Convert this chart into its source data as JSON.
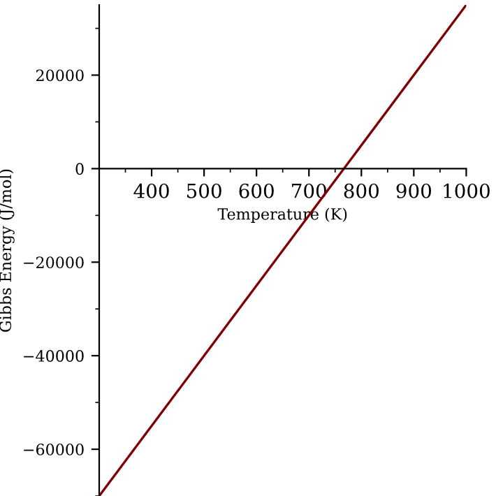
{
  "chart_data": {
    "type": "line",
    "xlabel": "Temperature (K)",
    "ylabel": "Gibbs Energy (J/mol)",
    "x": [
      300,
      1000
    ],
    "series": [
      {
        "color": "#7f0000",
        "values": [
          -70000,
          35000
        ]
      }
    ],
    "xlim": [
      300,
      1000
    ],
    "ylim": [
      -70000,
      35000
    ],
    "xticks": [
      400,
      500,
      600,
      700,
      800,
      900,
      1000
    ],
    "yticks": [
      -60000,
      -40000,
      -20000,
      0,
      20000
    ],
    "grid": false,
    "legend": false,
    "marker": "none",
    "line_style": "solid"
  }
}
